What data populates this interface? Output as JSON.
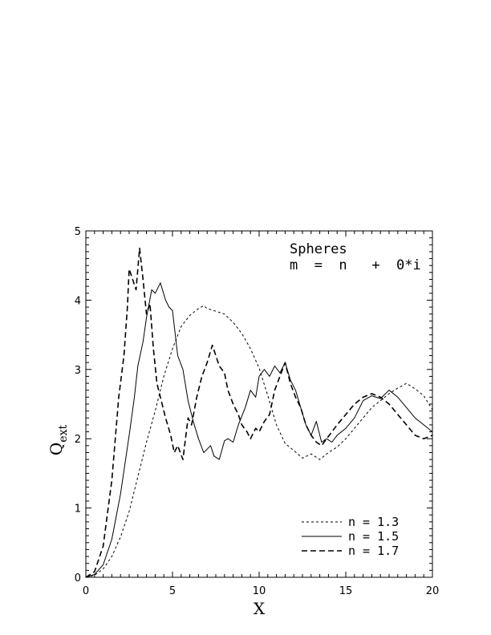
{
  "chart_data": {
    "type": "line",
    "title": "",
    "xlabel": "X",
    "ylabel_main": "Q",
    "ylabel_sub": "ext",
    "xlim": [
      0,
      20
    ],
    "ylim": [
      0,
      5
    ],
    "x_ticks": [
      0,
      5,
      10,
      15,
      20
    ],
    "y_ticks": [
      0,
      1,
      2,
      3,
      4,
      5
    ],
    "x_minor_step": 0.5,
    "y_minor_step": 0.1,
    "grid": false,
    "legend_position": "bottom-right",
    "annotation": {
      "line1": "Spheres",
      "line2": "m  =  n   +  0*i"
    },
    "series": [
      {
        "name": "n  =  1.3",
        "style": "short-dash",
        "x": [
          0,
          0.5,
          1.0,
          1.5,
          2.0,
          2.5,
          3.0,
          3.5,
          4.0,
          4.5,
          5.0,
          5.5,
          6.0,
          6.5,
          6.8,
          7.0,
          7.5,
          8.0,
          8.5,
          9.0,
          9.5,
          10.0,
          10.5,
          11.0,
          11.5,
          12.0,
          12.5,
          13.0,
          13.5,
          14.0,
          14.5,
          15.0,
          15.5,
          16.0,
          16.5,
          17.0,
          17.5,
          18.0,
          18.5,
          19.0,
          19.5,
          20.0
        ],
        "y": [
          0.0,
          0.03,
          0.12,
          0.3,
          0.58,
          0.95,
          1.45,
          1.95,
          2.4,
          2.9,
          3.3,
          3.62,
          3.78,
          3.88,
          3.92,
          3.88,
          3.84,
          3.8,
          3.68,
          3.52,
          3.3,
          3.02,
          2.62,
          2.2,
          1.93,
          1.83,
          1.72,
          1.78,
          1.7,
          1.8,
          1.88,
          2.0,
          2.15,
          2.3,
          2.45,
          2.55,
          2.65,
          2.73,
          2.8,
          2.72,
          2.62,
          2.42
        ]
      },
      {
        "name": "n  =  1.5",
        "style": "solid",
        "x": [
          0,
          0.5,
          1.0,
          1.5,
          2.0,
          2.5,
          2.8,
          3.0,
          3.3,
          3.5,
          3.8,
          4.0,
          4.3,
          4.6,
          4.8,
          5.0,
          5.3,
          5.6,
          5.9,
          6.2,
          6.5,
          6.8,
          7.2,
          7.4,
          7.7,
          8.0,
          8.2,
          8.5,
          8.8,
          9.2,
          9.5,
          9.8,
          10.0,
          10.3,
          10.6,
          10.9,
          11.2,
          11.5,
          11.8,
          12.1,
          12.4,
          12.7,
          13.0,
          13.3,
          13.6,
          13.9,
          14.2,
          14.5,
          15.0,
          15.5,
          16.0,
          16.5,
          17.0,
          17.5,
          18.0,
          18.5,
          19.0,
          19.5,
          20.0
        ],
        "y": [
          0.0,
          0.04,
          0.18,
          0.55,
          1.2,
          2.05,
          2.6,
          3.05,
          3.4,
          3.75,
          4.15,
          4.1,
          4.25,
          4.0,
          3.9,
          3.85,
          3.2,
          3.0,
          2.55,
          2.25,
          2.0,
          1.8,
          1.9,
          1.75,
          1.7,
          1.97,
          2.0,
          1.95,
          2.2,
          2.45,
          2.7,
          2.6,
          2.9,
          3.0,
          2.9,
          3.05,
          2.95,
          3.1,
          2.85,
          2.7,
          2.45,
          2.2,
          2.05,
          2.25,
          1.95,
          2.0,
          1.95,
          2.05,
          2.15,
          2.3,
          2.55,
          2.62,
          2.58,
          2.7,
          2.6,
          2.45,
          2.3,
          2.2,
          2.1
        ]
      },
      {
        "name": "n  =  1.7",
        "style": "long-dash",
        "x": [
          0,
          0.5,
          1.0,
          1.5,
          1.9,
          2.2,
          2.4,
          2.5,
          2.7,
          2.9,
          3.1,
          3.3,
          3.5,
          3.7,
          3.9,
          4.1,
          4.3,
          4.6,
          4.9,
          5.1,
          5.3,
          5.6,
          5.9,
          6.1,
          6.4,
          6.7,
          7.0,
          7.3,
          7.5,
          7.7,
          8.0,
          8.2,
          8.5,
          8.8,
          9.0,
          9.3,
          9.5,
          9.8,
          10.0,
          10.3,
          10.6,
          10.9,
          11.2,
          11.5,
          11.8,
          12.1,
          12.4,
          12.7,
          13.0,
          13.3,
          13.6,
          13.9,
          14.2,
          14.5,
          15.0,
          15.5,
          16.0,
          16.5,
          17.0,
          17.5,
          18.0,
          18.5,
          19.0,
          19.5,
          20.0
        ],
        "y": [
          0.0,
          0.08,
          0.45,
          1.4,
          2.6,
          3.2,
          3.9,
          4.45,
          4.3,
          4.15,
          4.75,
          4.3,
          3.8,
          3.95,
          3.3,
          2.8,
          2.6,
          2.3,
          2.05,
          1.8,
          1.9,
          1.7,
          2.3,
          2.2,
          2.6,
          2.9,
          3.1,
          3.35,
          3.2,
          3.05,
          2.95,
          2.7,
          2.5,
          2.35,
          2.2,
          2.1,
          2.0,
          2.15,
          2.1,
          2.25,
          2.35,
          2.7,
          2.9,
          3.1,
          2.8,
          2.6,
          2.45,
          2.2,
          2.05,
          1.95,
          1.9,
          2.0,
          2.1,
          2.2,
          2.35,
          2.5,
          2.6,
          2.65,
          2.6,
          2.5,
          2.35,
          2.2,
          2.05,
          2.0,
          2.05
        ]
      }
    ]
  }
}
